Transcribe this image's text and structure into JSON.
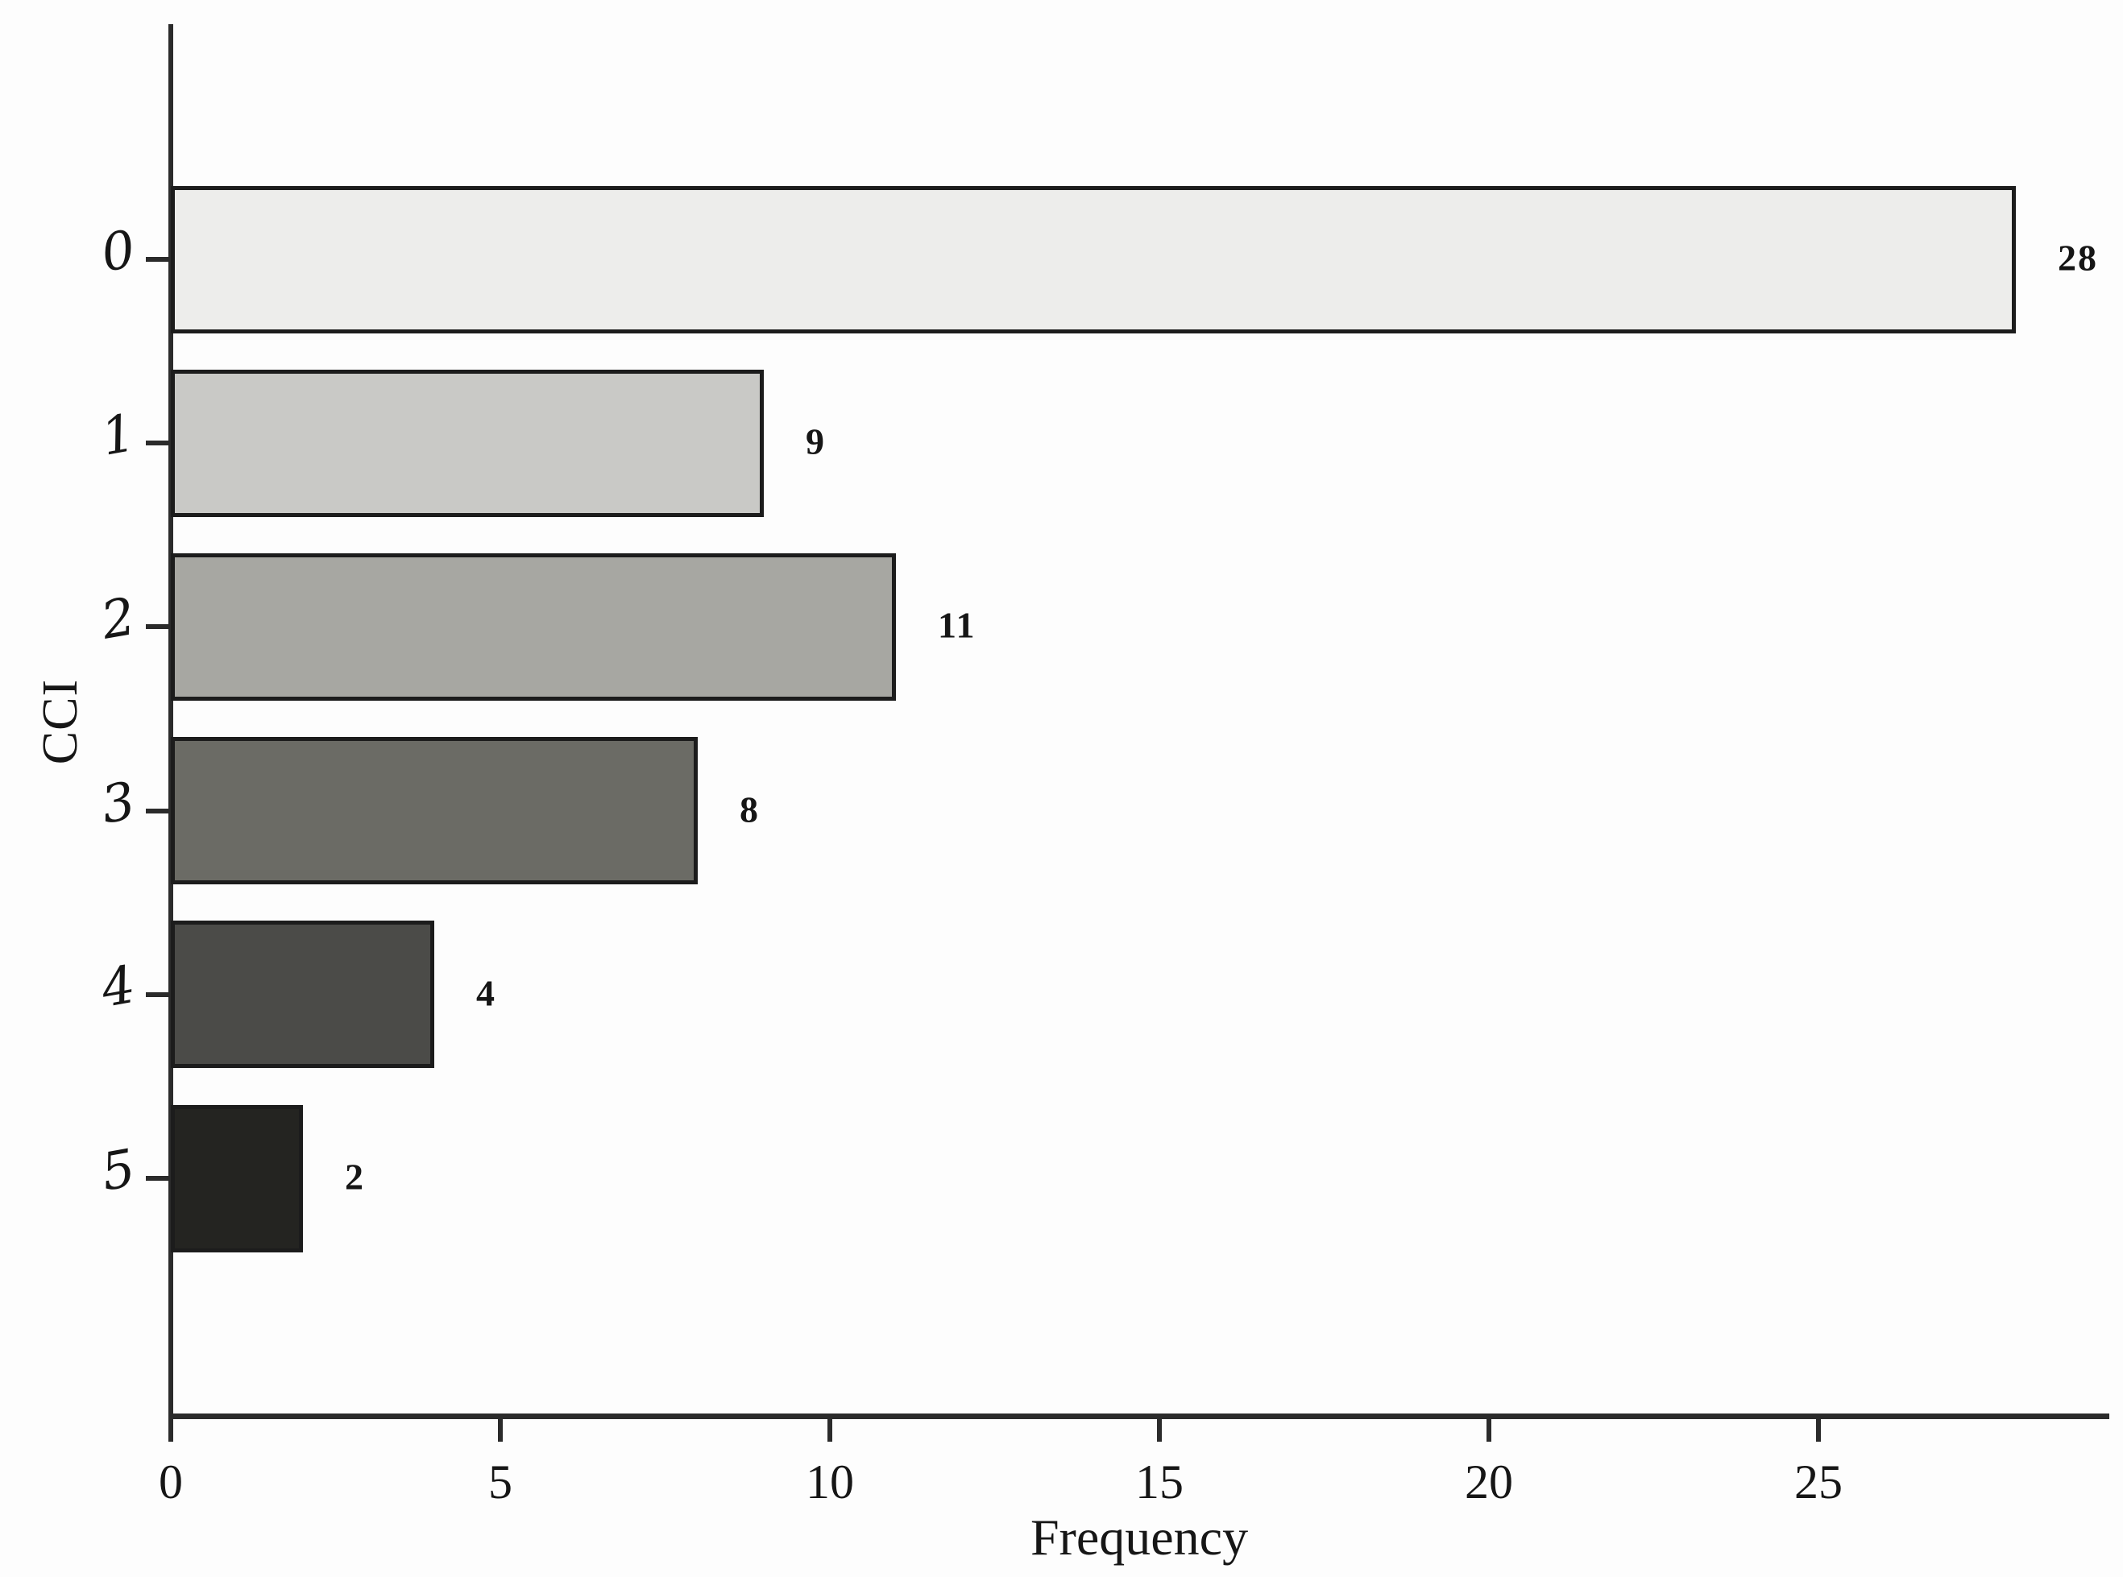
{
  "chart_data": {
    "type": "bar",
    "orientation": "horizontal",
    "title": "",
    "xlabel": "Frequency",
    "ylabel": "CCI",
    "categories": [
      "0",
      "1",
      "2",
      "3",
      "4",
      "5"
    ],
    "values": [
      28,
      9,
      11,
      8,
      4,
      2
    ],
    "bar_labels": [
      "28",
      "9",
      "11",
      "8",
      "4",
      "2"
    ],
    "bar_colors": [
      "#ededeb",
      "#c9c9c6",
      "#a7a7a2",
      "#6b6b65",
      "#4b4b48",
      "#242421"
    ],
    "bar_edge_color": "#1c1c1c",
    "x_ticks": [
      0,
      5,
      10,
      15,
      20,
      25
    ],
    "x_tick_labels": [
      "0",
      "5",
      "10",
      "15",
      "20",
      "25"
    ],
    "xlim": [
      0,
      29.4
    ],
    "ylim_categories_top_to_bottom": [
      "0",
      "1",
      "2",
      "3",
      "4",
      "5"
    ],
    "grid": false,
    "legend": null,
    "axis_color": "#2b2b2b",
    "text_color": "#161616",
    "background": "#ffffff"
  }
}
